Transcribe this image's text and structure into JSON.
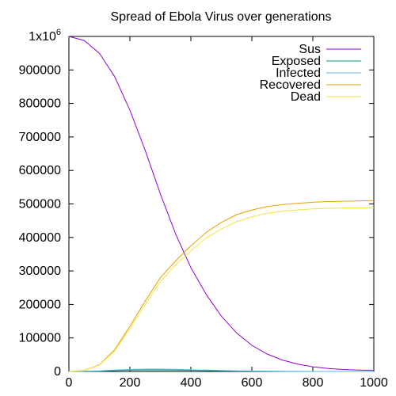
{
  "chart_data": {
    "type": "line",
    "title": "Spread of Ebola Virus over generations",
    "xlabel": "",
    "ylabel": "",
    "xlim": [
      0,
      1000
    ],
    "ylim": [
      0,
      1000000
    ],
    "grid": false,
    "legend_position": "top-right",
    "x_ticks": [
      0,
      200,
      400,
      600,
      800,
      1000
    ],
    "y_ticks": [
      {
        "value": 0,
        "label": "0"
      },
      {
        "value": 100000,
        "label": "100000"
      },
      {
        "value": 200000,
        "label": "200000"
      },
      {
        "value": 300000,
        "label": "300000"
      },
      {
        "value": 400000,
        "label": "400000"
      },
      {
        "value": 500000,
        "label": "500000"
      },
      {
        "value": 600000,
        "label": "600000"
      },
      {
        "value": 700000,
        "label": "700000"
      },
      {
        "value": 800000,
        "label": "800000"
      },
      {
        "value": 900000,
        "label": "900000"
      },
      {
        "value": 1000000,
        "label": "1x10",
        "label_sup": "6"
      }
    ],
    "series": [
      {
        "name": "Sus",
        "color": "#9400d3",
        "x": [
          0,
          50,
          100,
          150,
          200,
          250,
          300,
          350,
          400,
          450,
          500,
          550,
          600,
          650,
          700,
          750,
          800,
          850,
          900,
          950,
          1000
        ],
        "y": [
          1000000,
          988000,
          950000,
          880000,
          780000,
          660000,
          530000,
          410000,
          310000,
          230000,
          165000,
          115000,
          78000,
          52000,
          34000,
          22000,
          14000,
          9000,
          6000,
          4000,
          3000
        ]
      },
      {
        "name": "Exposed",
        "color": "#009e73",
        "x": [
          0,
          100,
          150,
          200,
          250,
          300,
          350,
          400,
          450,
          500,
          550,
          600,
          650,
          700,
          800,
          1000
        ],
        "y": [
          0,
          1000,
          2500,
          4000,
          4500,
          4500,
          4000,
          3500,
          2500,
          2000,
          1500,
          1000,
          500,
          0,
          0,
          0
        ]
      },
      {
        "name": "Infected",
        "color": "#56b4e9",
        "x": [
          0,
          100,
          150,
          200,
          250,
          300,
          350,
          400,
          450,
          500,
          550,
          600,
          650,
          700,
          800,
          1000
        ],
        "y": [
          0,
          2000,
          4000,
          6000,
          7000,
          7000,
          6500,
          5000,
          4000,
          3000,
          2000,
          1500,
          1000,
          500,
          0,
          0
        ]
      },
      {
        "name": "Recovered",
        "color": "#e69f00",
        "x": [
          0,
          50,
          100,
          150,
          200,
          250,
          300,
          350,
          400,
          450,
          500,
          550,
          600,
          650,
          700,
          750,
          800,
          850,
          900,
          950,
          1000
        ],
        "y": [
          0,
          3000,
          20000,
          65000,
          135000,
          210000,
          280000,
          330000,
          375000,
          415000,
          445000,
          468000,
          482000,
          492000,
          498000,
          502000,
          505000,
          507000,
          508000,
          509000,
          510000
        ]
      },
      {
        "name": "Dead",
        "color": "#f0e442",
        "x": [
          0,
          50,
          100,
          150,
          200,
          250,
          300,
          350,
          400,
          450,
          500,
          550,
          600,
          650,
          700,
          750,
          800,
          850,
          900,
          950,
          1000
        ],
        "y": [
          0,
          3000,
          19000,
          62000,
          128000,
          200000,
          268000,
          318000,
          360000,
          398000,
          425000,
          447000,
          462000,
          472000,
          478000,
          482000,
          485000,
          487000,
          488000,
          488500,
          489000
        ]
      }
    ]
  }
}
